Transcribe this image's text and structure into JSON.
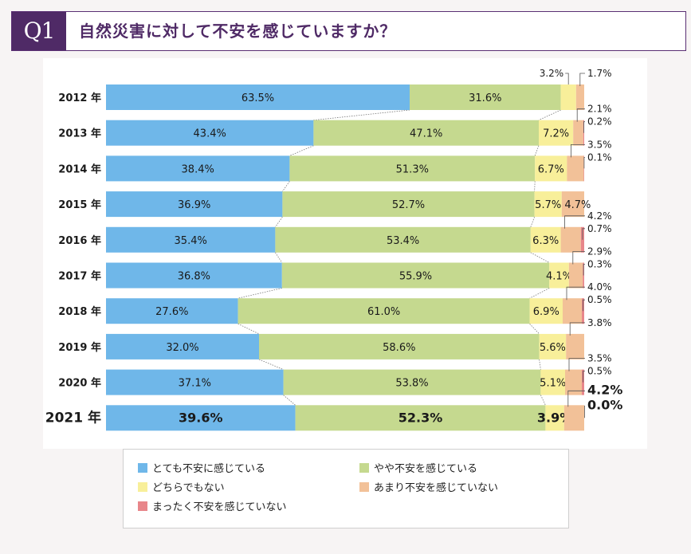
{
  "header": {
    "badge": "Q1",
    "title": "自然災害に対して不安を感じていますか？"
  },
  "colors": {
    "very": "#6fb7e9",
    "somewhat": "#c5d98f",
    "neither": "#f8ef9a",
    "not_much": "#f2c198",
    "not_at_all": "#e8868a",
    "header": "#4f2a66"
  },
  "legend": [
    {
      "label": "とても不安に感じている",
      "color": "#6fb7e9"
    },
    {
      "label": "やや不安を感じている",
      "color": "#c5d98f"
    },
    {
      "label": "どちらでもない",
      "color": "#f8ef9a"
    },
    {
      "label": "あまり不安を感じていない",
      "color": "#f2c198"
    },
    {
      "label": "まったく不安を感じていない",
      "color": "#e8868a"
    }
  ],
  "chart_data": {
    "type": "bar",
    "orientation": "horizontal-stacked",
    "unit": "%",
    "categories": [
      "2012 年",
      "2013 年",
      "2014 年",
      "2015 年",
      "2016 年",
      "2017 年",
      "2018 年",
      "2019 年",
      "2020 年",
      "2021 年"
    ],
    "series": [
      {
        "name": "とても不安に感じている",
        "color": "#6fb7e9",
        "values": [
          63.5,
          43.4,
          38.4,
          36.9,
          35.4,
          36.8,
          27.6,
          32.0,
          37.1,
          39.6
        ],
        "labels": [
          "63.5%",
          "43.4%",
          "38.4%",
          "36.9%",
          "35.4%",
          "36.8%",
          "27.6%",
          "32.0%",
          "37.1%",
          "39.6%"
        ]
      },
      {
        "name": "やや不安を感じている",
        "color": "#c5d98f",
        "values": [
          31.6,
          47.1,
          51.3,
          52.7,
          53.4,
          55.9,
          61.0,
          58.6,
          53.8,
          52.3
        ],
        "labels": [
          "31.6%",
          "47.1%",
          "51.3%",
          "52.7%",
          "53.4%",
          "55.9%",
          "61.0%",
          "58.6%",
          "53.8%",
          "52.3%"
        ]
      },
      {
        "name": "どちらでもない",
        "color": "#f8ef9a",
        "values": [
          3.2,
          7.2,
          6.7,
          5.7,
          6.3,
          4.1,
          6.9,
          5.6,
          5.1,
          3.9
        ],
        "labels": [
          "3.2%",
          "7.2%",
          "6.7%",
          "5.7%",
          "6.3%",
          "4.1%",
          "6.9%",
          "5.6%",
          "5.1%",
          "3.9%"
        ]
      },
      {
        "name": "あまり不安を感じていない",
        "color": "#f2c198",
        "values": [
          1.7,
          2.1,
          3.5,
          4.7,
          4.2,
          2.9,
          4.0,
          3.8,
          3.5,
          4.2
        ],
        "labels": [
          "1.7%",
          "2.1%",
          "3.5%",
          "4.7%",
          "4.2%",
          "2.9%",
          "4.0%",
          "3.8%",
          "3.5%",
          "4.2%"
        ]
      },
      {
        "name": "まったく不安を感じていない",
        "color": "#e8868a",
        "values": [
          0.0,
          0.2,
          0.1,
          0.0,
          0.7,
          0.3,
          0.5,
          0.0,
          0.5,
          0.0
        ],
        "labels": [
          "",
          "0.2%",
          "0.1%",
          "",
          "0.7%",
          "0.3%",
          "0.5%",
          "",
          "0.5%",
          "0.0%"
        ]
      }
    ],
    "xlim": [
      0,
      100
    ],
    "highlight_category": "2021 年",
    "legend_position": "bottom"
  }
}
